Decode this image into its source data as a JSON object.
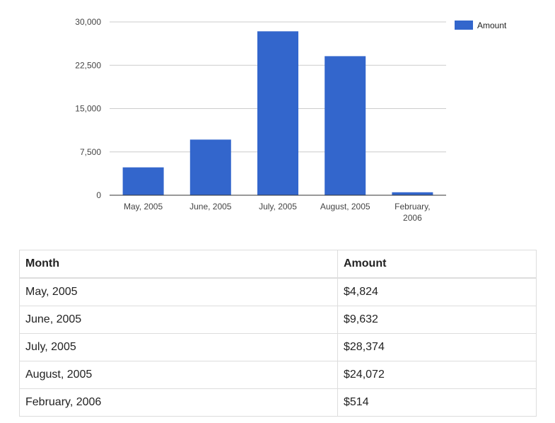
{
  "chart_data": {
    "type": "bar",
    "categories": [
      "May, 2005",
      "June, 2005",
      "July, 2005",
      "August, 2005",
      "February, 2006"
    ],
    "category_lines": [
      [
        "May, 2005"
      ],
      [
        "June, 2005"
      ],
      [
        "July, 2005"
      ],
      [
        "August, 2005"
      ],
      [
        "February,",
        "2006"
      ]
    ],
    "series": [
      {
        "name": "Amount",
        "values": [
          4824,
          9632,
          28374,
          24072,
          514
        ]
      }
    ],
    "ylim": [
      0,
      30000
    ],
    "yticks": [
      0,
      7500,
      15000,
      22500,
      30000
    ],
    "ytick_labels": [
      "0",
      "7,500",
      "15,000",
      "22,500",
      "30,000"
    ],
    "grid": true,
    "legend_position": "top-right",
    "bar_color": "#3366cc"
  },
  "table": {
    "headers": {
      "month": "Month",
      "amount": "Amount"
    },
    "rows": [
      {
        "month": "May, 2005",
        "amount": "$4,824"
      },
      {
        "month": "June, 2005",
        "amount": "$9,632"
      },
      {
        "month": "July, 2005",
        "amount": "$28,374"
      },
      {
        "month": "August, 2005",
        "amount": "$24,072"
      },
      {
        "month": "February, 2006",
        "amount": "$514"
      }
    ]
  }
}
